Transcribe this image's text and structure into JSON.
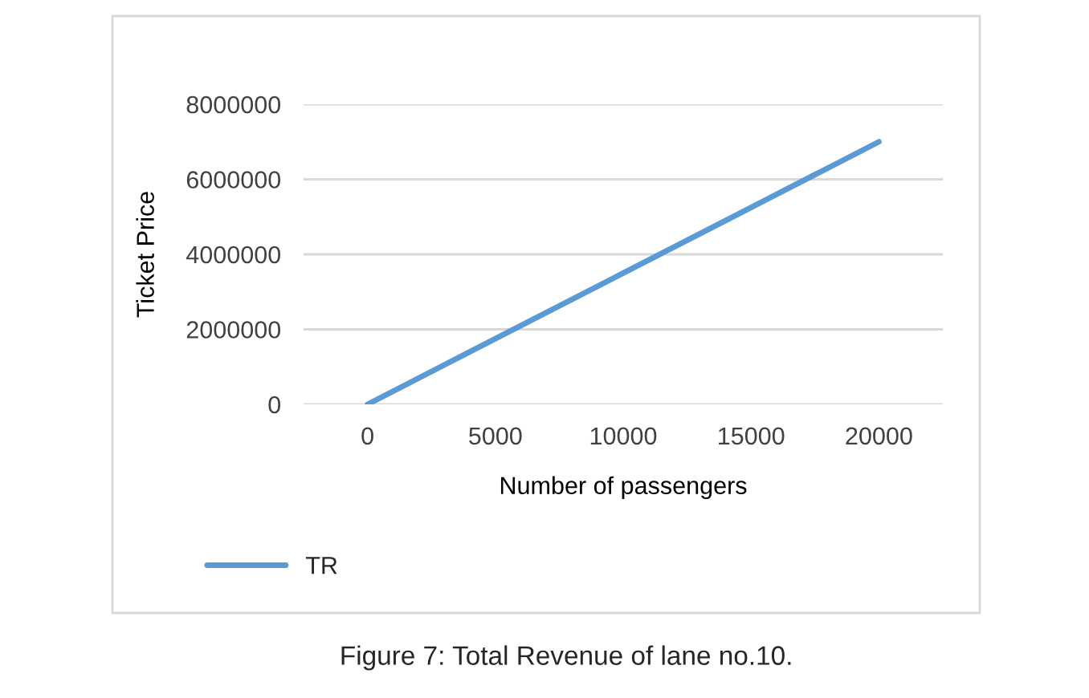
{
  "chart_data": {
    "type": "line",
    "xlabel": "Number of passengers",
    "ylabel": "Ticket Price",
    "categories": [
      "0",
      "5000",
      "10000",
      "15000",
      "20000"
    ],
    "series": [
      {
        "name": "TR",
        "color": "#5b9bd5",
        "values": [
          0,
          1750000,
          3500000,
          5250000,
          7000000
        ]
      }
    ],
    "ylim": [
      0,
      8000000
    ],
    "yticks": [
      0,
      2000000,
      4000000,
      6000000,
      8000000
    ],
    "grid": "y",
    "legend": "bottom",
    "marker": "none",
    "line_style": "solid",
    "annotations": [
      "Figure 7: Total Revenue of lane no.10."
    ]
  }
}
